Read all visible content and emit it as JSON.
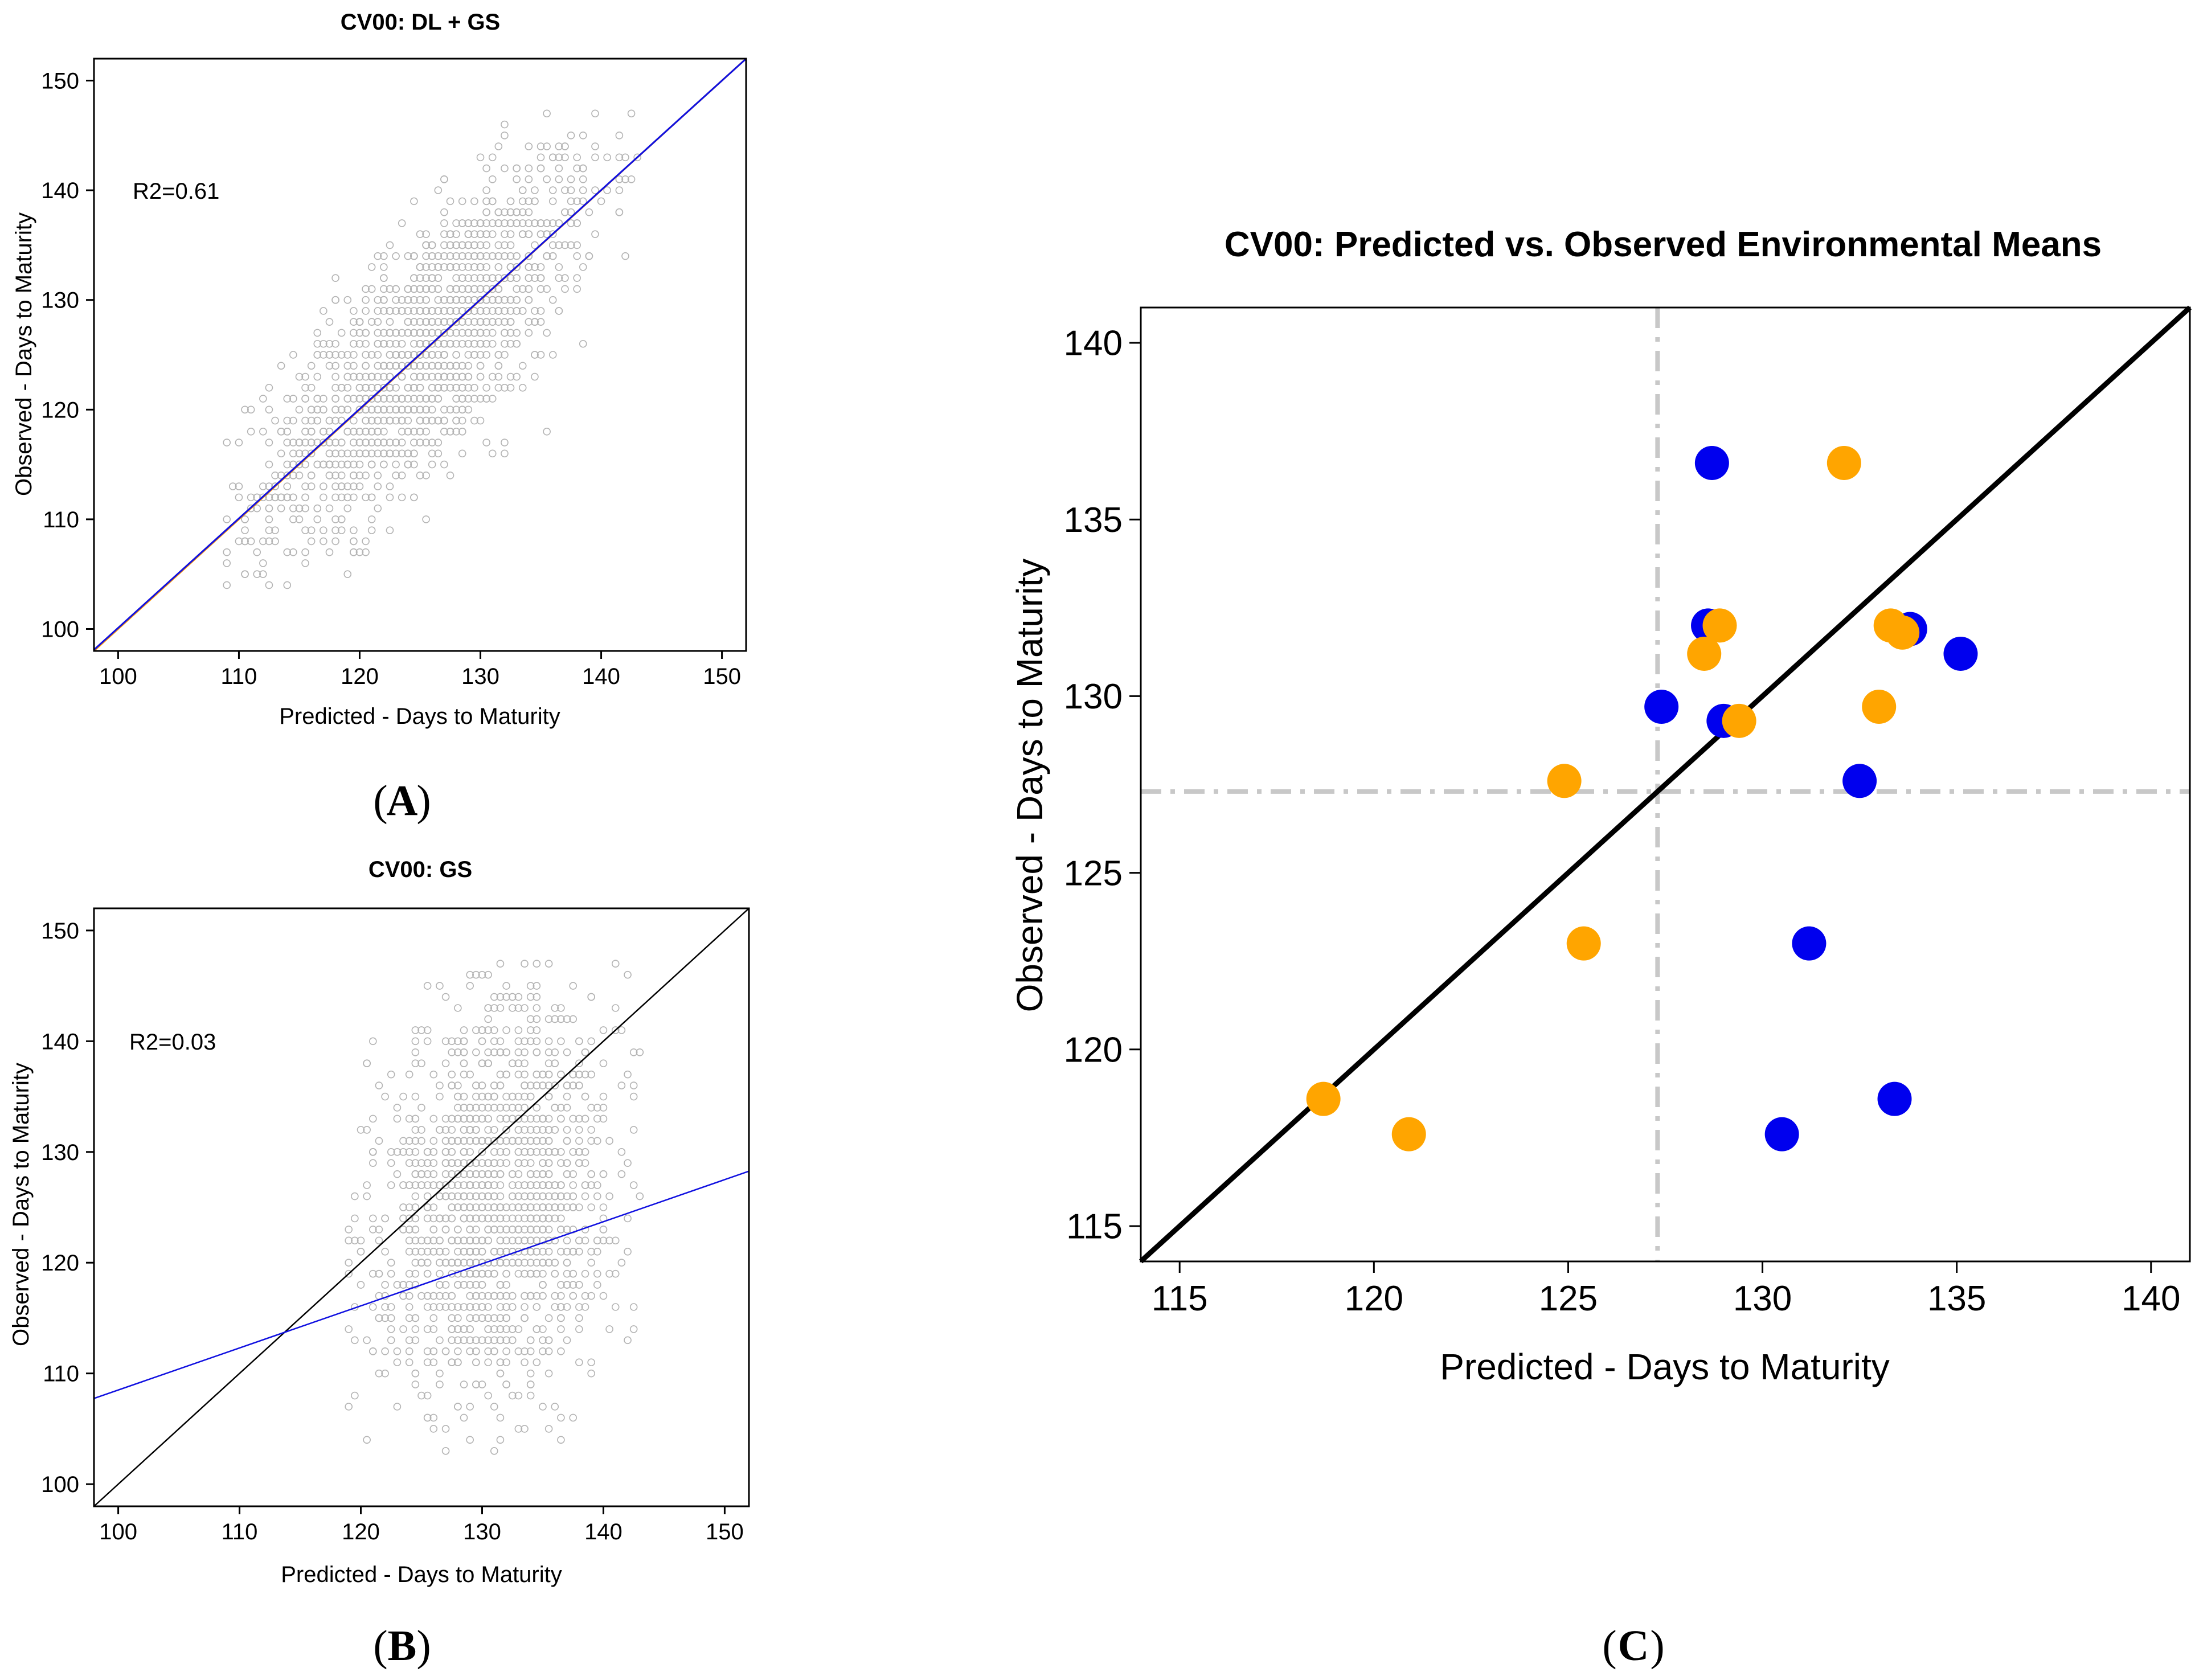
{
  "chart_data": [
    {
      "id": "A",
      "type": "scatter",
      "title": "CV00: DL + GS",
      "xlabel": "Predicted - Days to Maturity",
      "ylabel": "Observed - Days to Maturity",
      "xlim": [
        98,
        152
      ],
      "ylim": [
        98,
        152
      ],
      "xticks": [
        100,
        110,
        120,
        130,
        140,
        150
      ],
      "yticks": [
        100,
        110,
        120,
        130,
        140,
        150
      ],
      "annotation": "R2=0.61",
      "panel_label": "A",
      "point_color": "#b4b4b4",
      "point_cloud": {
        "x_mean": 125.5,
        "x_sd": 7.2,
        "y_mean": 125.5,
        "y_sd": 9.0,
        "r": 0.78,
        "x_min": 109,
        "x_max": 143,
        "y_min": 103,
        "y_max": 147,
        "count": 1400
      },
      "lines": [
        {
          "name": "identity",
          "color": "#ff9900",
          "intercept": 0,
          "slope": 1
        },
        {
          "name": "fit",
          "color": "#1010e0",
          "intercept": 0.3,
          "slope": 0.998
        }
      ]
    },
    {
      "id": "B",
      "type": "scatter",
      "title": "CV00: GS",
      "xlabel": "Predicted - Days to Maturity",
      "ylabel": "Observed - Days to Maturity",
      "xlim": [
        98,
        152
      ],
      "ylim": [
        98,
        152
      ],
      "xticks": [
        100,
        110,
        120,
        130,
        140,
        150
      ],
      "yticks": [
        100,
        110,
        120,
        130,
        140,
        150
      ],
      "annotation": "R2=0.03",
      "panel_label": "B",
      "point_color": "#b4b4b4",
      "point_cloud": {
        "x_mean": 131,
        "x_sd": 5.0,
        "y_mean": 125.5,
        "y_sd": 9.0,
        "r": 0.18,
        "x_min": 119,
        "x_max": 143,
        "y_min": 103,
        "y_max": 147,
        "count": 1400
      },
      "lines": [
        {
          "name": "identity",
          "color": "#000000",
          "intercept": 0,
          "slope": 1
        },
        {
          "name": "fit",
          "color": "#1010e0",
          "intercept": 70.5,
          "slope": 0.38
        }
      ]
    },
    {
      "id": "C",
      "type": "scatter",
      "title": "CV00: Predicted vs. Observed Environmental Means",
      "xlabel": "Predicted - Days to Maturity",
      "ylabel": "Observed - Days to Maturity",
      "xlim": [
        114,
        141
      ],
      "ylim": [
        114,
        141
      ],
      "xticks": [
        115,
        120,
        125,
        130,
        135,
        140
      ],
      "yticks": [
        115,
        120,
        125,
        130,
        135,
        140
      ],
      "panel_label": "C",
      "reference_lines": {
        "vertical_x": 127.3,
        "horizontal_y": 127.3,
        "color": "#c8c8c8"
      },
      "identity_line": {
        "color": "#000000"
      },
      "series": [
        {
          "name": "blue",
          "color": "#0000ee",
          "x": [
            128.7,
            128.6,
            133.8,
            135.1,
            127.4,
            129.0,
            132.5,
            131.2,
            133.4,
            130.5
          ],
          "y": [
            136.6,
            132.0,
            131.9,
            131.2,
            129.7,
            129.3,
            127.6,
            123.0,
            118.6,
            117.6
          ]
        },
        {
          "name": "orange",
          "color": "#ffa500",
          "x": [
            132.1,
            128.9,
            128.5,
            133.3,
            133.6,
            133.0,
            129.4,
            124.9,
            125.4,
            118.7,
            120.9
          ],
          "y": [
            136.6,
            132.0,
            131.2,
            132.0,
            131.8,
            129.7,
            129.3,
            127.6,
            123.0,
            118.6,
            117.6
          ]
        }
      ]
    }
  ]
}
